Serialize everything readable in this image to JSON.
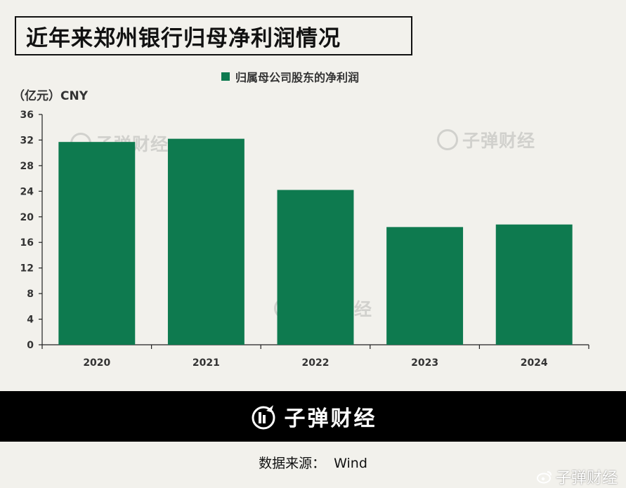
{
  "title": "近年来郑州银行归母净利润情况",
  "legend": {
    "label": "归属母公司股东的净利润",
    "color": "#0e7a4f"
  },
  "unit_label": "（亿元）CNY",
  "watermark_text": "子弹财经",
  "footer": {
    "brand": "子弹财经",
    "logo_icon": "bullet-finance-logo-icon"
  },
  "source": "数据来源：  Wind",
  "weibo": {
    "text": "子弹财经",
    "icon": "weibo-icon"
  },
  "chart_data": {
    "type": "bar",
    "title": "近年来郑州银行归母净利润情况",
    "categories": [
      "2020",
      "2021",
      "2022",
      "2023",
      "2024"
    ],
    "series": [
      {
        "name": "归属母公司股东的净利润",
        "values": [
          31.7,
          32.2,
          24.2,
          18.4,
          18.8
        ]
      }
    ],
    "ylabel": "（亿元）CNY",
    "xlabel": "",
    "ylim": [
      0,
      36
    ],
    "yticks": [
      0,
      4,
      8,
      12,
      16,
      20,
      24,
      28,
      32,
      36
    ],
    "grid": false,
    "legend_position": "top-center",
    "bar_color": "#0e7a4f"
  }
}
